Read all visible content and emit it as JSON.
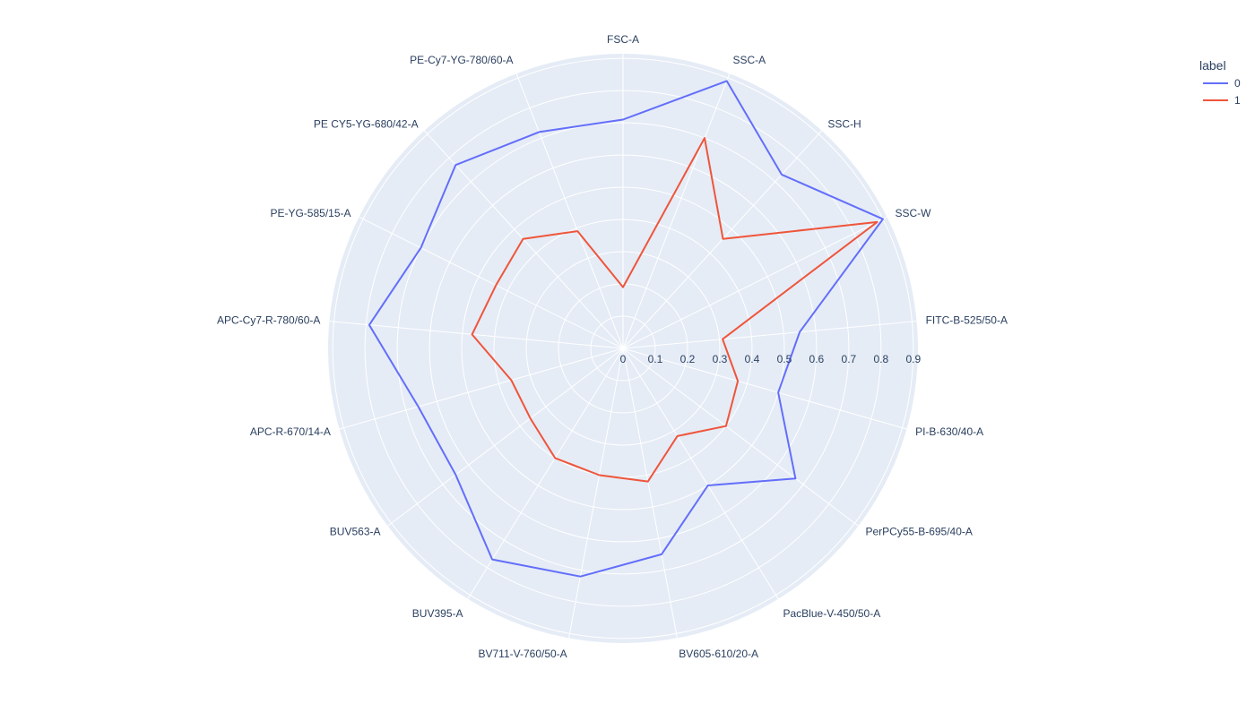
{
  "chart_data": {
    "type": "radar",
    "title": "",
    "categories": [
      "FSC-A",
      "SSC-A",
      "SSC-H",
      "SSC-W",
      "FITC-B-525/50-A",
      "PI-B-630/40-A",
      "PerPCy55-B-695/40-A",
      "PacBlue-V-450/50-A",
      "BV605-610/20-A",
      "BV711-V-760/50-A",
      "BUV395-A",
      "BUV563-A",
      "APC-R-670/14-A",
      "APC-Cy7-R-780/60-A",
      "PE-YG-585/15-A",
      "PE CY5-YG-680/42-A",
      "PE-Cy7-YG-780/60-A"
    ],
    "radial_ticks": [
      "0",
      "0.1",
      "0.2",
      "0.3",
      "0.4",
      "0.5",
      "0.6",
      "0.7",
      "0.8",
      "0.9"
    ],
    "radial_range": [
      0,
      0.9143
    ],
    "series": [
      {
        "name": "0",
        "color": "#636efa",
        "values": [
          0.71,
          0.89,
          0.73,
          0.9,
          0.55,
          0.5,
          0.67,
          0.5,
          0.65,
          0.72,
          0.77,
          0.65,
          0.66,
          0.79,
          0.7,
          0.77,
          0.72
        ]
      },
      {
        "name": "1",
        "color": "#ef553b",
        "values": [
          0.19,
          0.7,
          0.46,
          0.88,
          0.31,
          0.37,
          0.4,
          0.32,
          0.42,
          0.4,
          0.4,
          0.36,
          0.36,
          0.47,
          0.44,
          0.46,
          0.39
        ]
      }
    ],
    "grid": true,
    "legend": {
      "title": "label",
      "position": "top-right",
      "entries": [
        "0",
        "1"
      ]
    }
  }
}
